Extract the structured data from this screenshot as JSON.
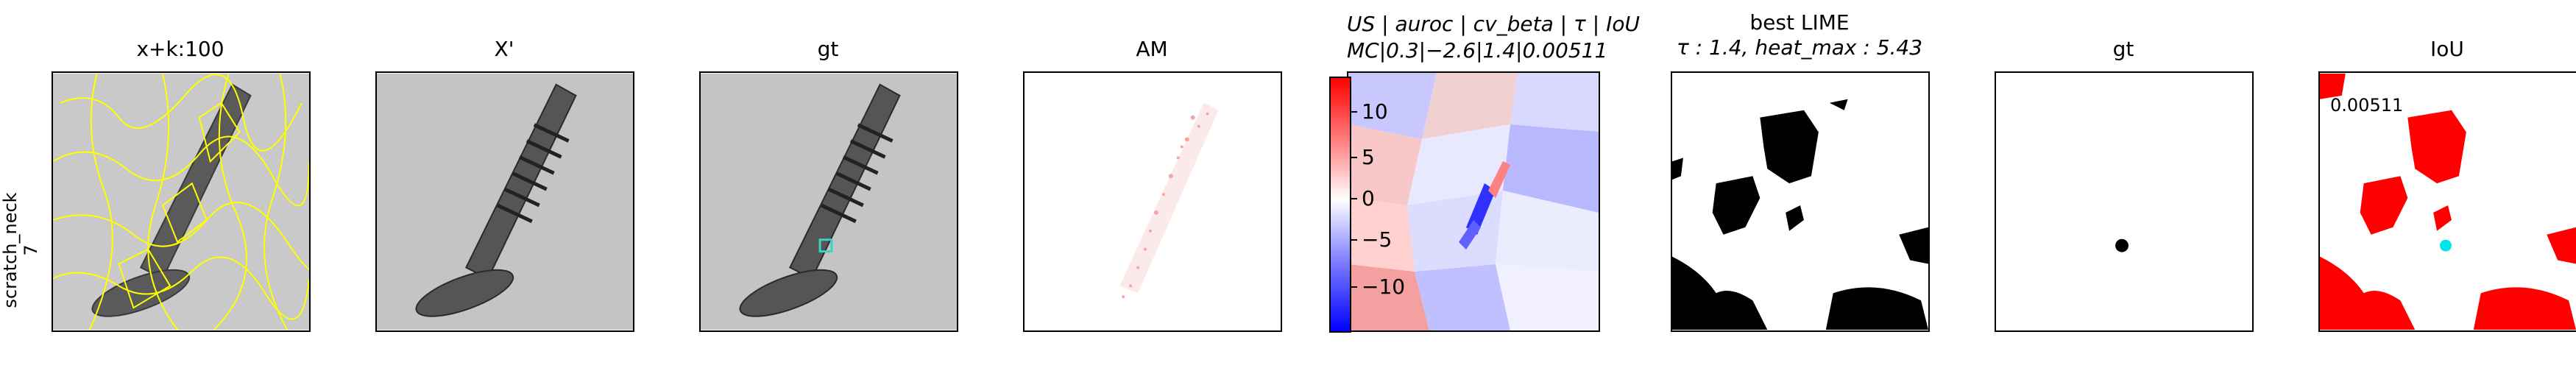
{
  "row_label": {
    "line1": "scratch_neck",
    "line2": "7"
  },
  "panels": [
    {
      "title": "x+k:100"
    },
    {
      "title": "X'"
    },
    {
      "title": "gt"
    },
    {
      "title": "AM"
    },
    {
      "title_line1": "US | auroc | cv_beta | τ | IoU",
      "title_line2": "MC|0.3|−2.6|1.4|0.00511"
    },
    {
      "title_line1": "best LIME",
      "title_line2": "τ : 1.4, heat_max : 5.43"
    },
    {
      "title": "gt"
    },
    {
      "title": "IoU",
      "value": "0.00511"
    }
  ],
  "colorbar": {
    "ticks": [
      "10",
      "5",
      "0",
      "−5",
      "−10"
    ],
    "colors": {
      "max": "#ff0000",
      "mid": "#ffffff",
      "min": "#0000ff"
    }
  },
  "colors": {
    "segment_lines": "#ffff00",
    "gt_box": "#3fd0c8",
    "iou_red": "#ff0000",
    "iou_cyan": "#00e5e5"
  }
}
